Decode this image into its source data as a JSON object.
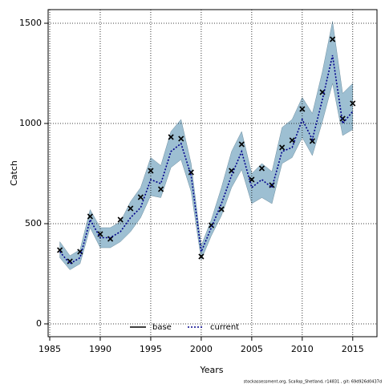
{
  "chart_data": {
    "type": "line",
    "xlabel": "Years",
    "ylabel": "Catch",
    "footnote": "stockassessment.org, Scallop_Shetland, r14831 , git: 69d926d0437d",
    "x": [
      1986,
      1987,
      1988,
      1989,
      1990,
      1991,
      1992,
      1993,
      1994,
      1995,
      1996,
      1997,
      1998,
      1999,
      2000,
      2001,
      2002,
      2003,
      2004,
      2005,
      2006,
      2007,
      2008,
      2009,
      2010,
      2011,
      2012,
      2013,
      2014,
      2015
    ],
    "series": [
      {
        "name": "base",
        "color": "#000000",
        "style": "points",
        "values": [
          368,
          312,
          360,
          536,
          448,
          424,
          520,
          576,
          632,
          764,
          672,
          932,
          924,
          756,
          336,
          492,
          572,
          764,
          896,
          720,
          776,
          692,
          880,
          916,
          1072,
          912,
          1156,
          1420,
          1024,
          1100
        ]
      },
      {
        "name": "current",
        "color": "#00008b",
        "style": "dotted",
        "band_color": "#9dbfd2",
        "values": [
          360,
          300,
          330,
          520,
          430,
          430,
          460,
          530,
          580,
          720,
          700,
          860,
          900,
          740,
          360,
          480,
          600,
          740,
          860,
          680,
          720,
          680,
          860,
          880,
          1020,
          920,
          1120,
          1340,
          1000,
          1060
        ],
        "lower": [
          330,
          270,
          300,
          480,
          380,
          380,
          410,
          460,
          530,
          640,
          630,
          780,
          820,
          660,
          320,
          440,
          540,
          680,
          770,
          600,
          630,
          600,
          800,
          830,
          930,
          840,
          1010,
          1200,
          940,
          970
        ],
        "upper": [
          410,
          340,
          370,
          570,
          480,
          480,
          510,
          610,
          680,
          830,
          790,
          960,
          1020,
          800,
          390,
          520,
          680,
          860,
          960,
          750,
          800,
          760,
          980,
          1020,
          1130,
          1050,
          1260,
          1510,
          1150,
          1200
        ]
      }
    ],
    "xlim": [
      1984.84,
      2017.4
    ],
    "ylim": [
      -64,
      1568
    ],
    "xticks": [
      1985,
      1990,
      1995,
      2000,
      2005,
      2010,
      2015
    ],
    "yticks": [
      0,
      500,
      1000,
      1500
    ],
    "grid": true,
    "legend": "bottom"
  }
}
